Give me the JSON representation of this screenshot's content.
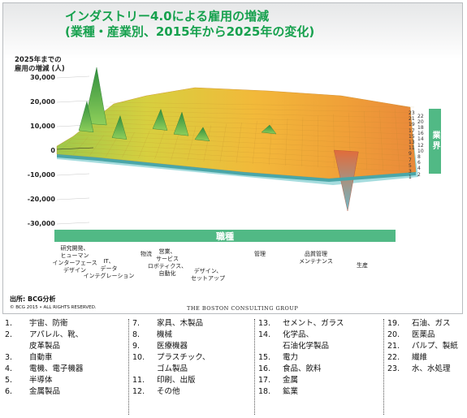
{
  "chart_data": {
    "type": "area",
    "title_line1": "インダストリー4.0による雇用の増減",
    "title_line2": "(業種・産業別、2015年から2025年の変化)",
    "ylabel_line1": "2025年までの",
    "ylabel_line2": "雇用の増減 (人)",
    "yticks": [
      "30,000",
      "20,000",
      "10,000",
      "0",
      "-10,000",
      "-20,000",
      "-30,000"
    ],
    "ytick_values": [
      30000,
      20000,
      10000,
      0,
      -10000,
      -20000,
      -30000
    ],
    "ylim": [
      -30000,
      30000
    ],
    "x_band_label": "職種",
    "y_band_label": "業界",
    "occupations": [
      {
        "label": "研究開発、\nヒューマン\nインターフェース\nデザイン"
      },
      {
        "label": "IT、\nデータ\nインテグレーション"
      },
      {
        "label": "物流"
      },
      {
        "label": "営業、\nサービス\nロボティクス、\n自動化"
      },
      {
        "label": "デザイン、\nセットアップ"
      },
      {
        "label": "管理"
      },
      {
        "label": "品質管理\nメンテナンス"
      },
      {
        "label": "生産"
      }
    ],
    "industry_axis_ticks": [
      "23",
      "22",
      "21",
      "20",
      "19",
      "18",
      "17",
      "16",
      "15",
      "14",
      "13",
      "12",
      "11",
      "10",
      "9",
      "8",
      "7",
      "6",
      "5",
      "4",
      "3",
      "2",
      "1"
    ],
    "peaks": [
      {
        "occupation_index": 0,
        "industry": 21,
        "value": 23000
      },
      {
        "occupation_index": 0,
        "industry": 17,
        "value": 12000
      },
      {
        "occupation_index": 1,
        "industry": 13,
        "value": 9000
      },
      {
        "occupation_index": 2,
        "industry": 18,
        "value": 8000
      },
      {
        "occupation_index": 3,
        "industry": 15,
        "value": 9000
      },
      {
        "occupation_index": 4,
        "industry": 12,
        "value": 5000
      },
      {
        "occupation_index": 5,
        "industry": 16,
        "value": 3000
      },
      {
        "occupation_index": 7,
        "industry": 6,
        "value": -25000
      }
    ]
  },
  "source": "出所: BCG分析",
  "copyright": "© BCG 2015 • ALL RIGHTS RESERVED.",
  "logo": "THE BOSTON CONSULTING GROUP",
  "legend": [
    {
      "num": "1.",
      "label": "宇宙、防衛"
    },
    {
      "num": "2.",
      "label": "アパレル、靴、",
      "cont": "皮革製品"
    },
    {
      "num": "3.",
      "label": "自動車"
    },
    {
      "num": "4.",
      "label": "電機、電子機器"
    },
    {
      "num": "5.",
      "label": "半導体"
    },
    {
      "num": "6.",
      "label": "金属製品"
    },
    {
      "num": "7.",
      "label": "家具、木製品"
    },
    {
      "num": "8.",
      "label": "機械"
    },
    {
      "num": "9.",
      "label": "医療機器"
    },
    {
      "num": "10.",
      "label": "プラスチック、",
      "cont": "ゴム製品"
    },
    {
      "num": "11.",
      "label": "印刷、出版"
    },
    {
      "num": "12.",
      "label": "その他"
    },
    {
      "num": "13.",
      "label": "セメント、ガラス"
    },
    {
      "num": "14.",
      "label": "化学品、",
      "cont": "石油化学製品"
    },
    {
      "num": "15.",
      "label": "電力"
    },
    {
      "num": "16.",
      "label": "食品、飲料"
    },
    {
      "num": "17.",
      "label": "金属"
    },
    {
      "num": "18.",
      "label": "鉱業"
    },
    {
      "num": "19.",
      "label": "石油、ガス"
    },
    {
      "num": "20.",
      "label": "医薬品"
    },
    {
      "num": "21.",
      "label": "パルプ、製紙"
    },
    {
      "num": "22.",
      "label": "繊維"
    },
    {
      "num": "23.",
      "label": "水、水処理"
    }
  ]
}
